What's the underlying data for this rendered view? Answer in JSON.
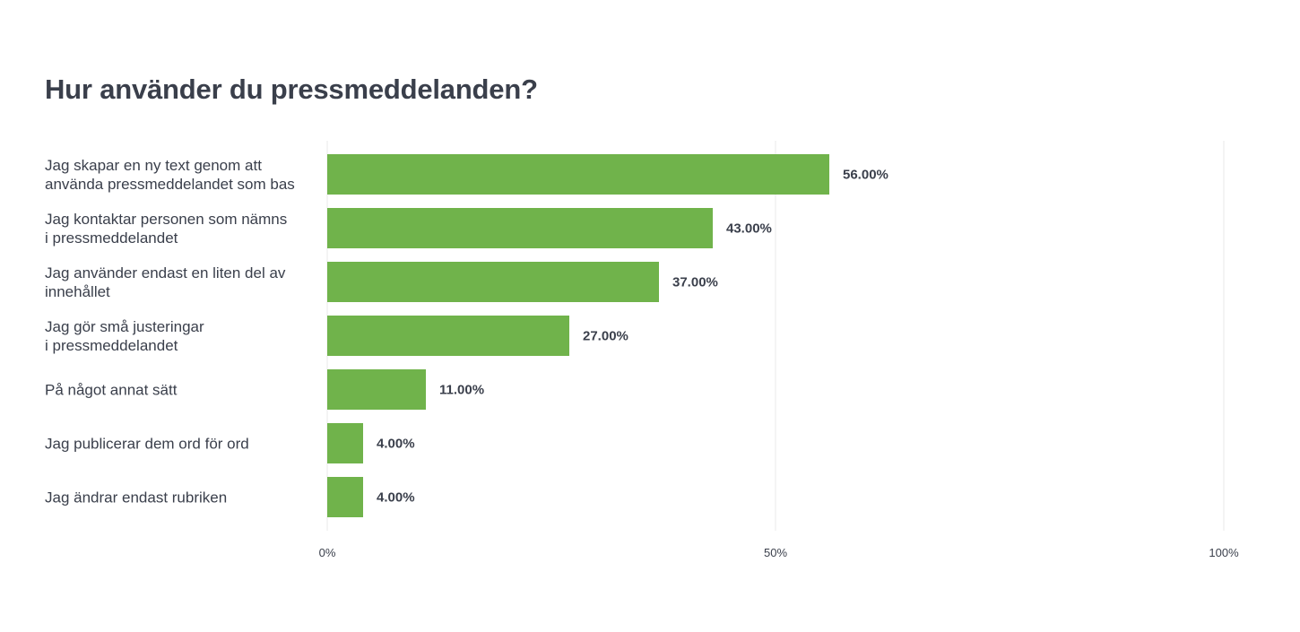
{
  "chart_data": {
    "type": "bar",
    "orientation": "horizontal",
    "title": "Hur använder du pressmeddelanden?",
    "categories": [
      [
        "Jag skapar en ny text genom att",
        "använda pressmeddelandet som bas"
      ],
      [
        "Jag kontaktar personen som nämns",
        "i pressmeddelandet"
      ],
      [
        "Jag använder endast en liten del av",
        "innehållet"
      ],
      [
        "Jag gör små justeringar",
        "i pressmeddelandet"
      ],
      [
        "På något annat sätt"
      ],
      [
        "Jag publicerar dem ord för ord"
      ],
      [
        "Jag ändrar endast rubriken"
      ]
    ],
    "values": [
      56,
      43,
      37,
      27,
      11,
      4,
      4
    ],
    "value_labels": [
      "56.00%",
      "43.00%",
      "37.00%",
      "27.00%",
      "11.00%",
      "4.00%",
      "4.00%"
    ],
    "xlim": [
      0,
      100
    ],
    "x_ticks": [
      0,
      50,
      100
    ],
    "x_tick_labels": [
      "0%",
      "50%",
      "100%"
    ],
    "grid": true,
    "bar_color": "#70b34b"
  }
}
